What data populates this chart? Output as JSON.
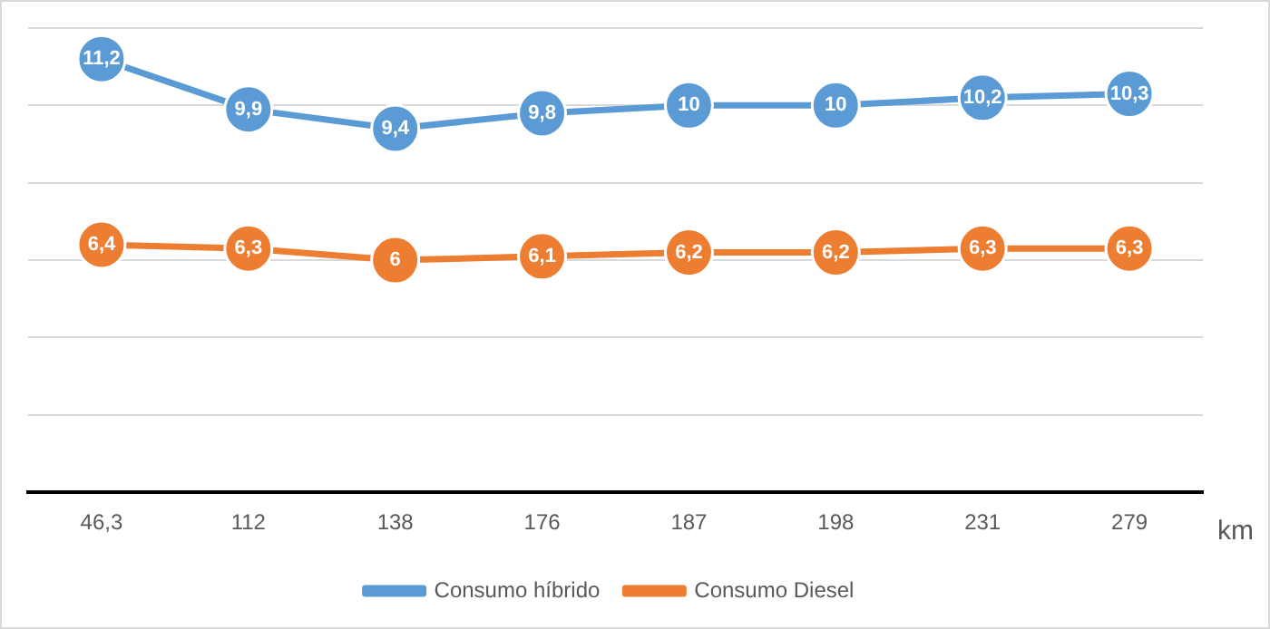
{
  "chart_data": {
    "type": "line",
    "xlabel": "km",
    "categories": [
      "46,3",
      "112",
      "138",
      "176",
      "187",
      "198",
      "231",
      "279"
    ],
    "series": [
      {
        "name": "Consumo híbrido",
        "color": "#5b9bd5",
        "values": [
          11.2,
          9.9,
          9.4,
          9.8,
          10,
          10,
          10.2,
          10.3
        ],
        "value_labels": [
          "11,2",
          "9,9",
          "9,4",
          "9,8",
          "10",
          "10",
          "10,2",
          "10,3"
        ]
      },
      {
        "name": "Consumo Diesel",
        "color": "#ed7d31",
        "values": [
          6.4,
          6.3,
          6,
          6.1,
          6.2,
          6.2,
          6.3,
          6.3
        ],
        "value_labels": [
          "6,4",
          "6,3",
          "6",
          "6,1",
          "6,2",
          "6,2",
          "6,3",
          "6,3"
        ]
      }
    ],
    "ylim": [
      0,
      12
    ],
    "yticks": [
      {
        "value": 0,
        "label": null
      },
      {
        "value": 2,
        "label": null
      },
      {
        "value": 4,
        "label": null
      },
      {
        "value": 6,
        "label": null
      },
      {
        "value": 8,
        "label": null
      },
      {
        "value": 10,
        "label": null
      },
      {
        "value": 12,
        "label": null
      }
    ],
    "tick_labels": "x",
    "grid": "y",
    "legend": "bottom",
    "marker": "circle",
    "line_style": "solid"
  }
}
